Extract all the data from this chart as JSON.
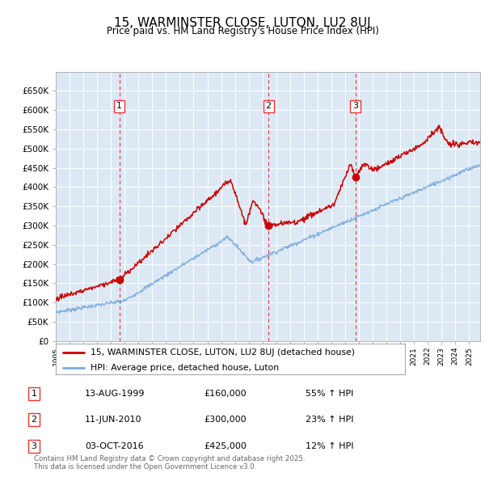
{
  "title": "15, WARMINSTER CLOSE, LUTON, LU2 8UJ",
  "subtitle": "Price paid vs. HM Land Registry's House Price Index (HPI)",
  "background_color": "#ffffff",
  "plot_bg_color": "#dce9f5",
  "ylim": [
    0,
    700000
  ],
  "yticks": [
    0,
    50000,
    100000,
    150000,
    200000,
    250000,
    300000,
    350000,
    400000,
    450000,
    500000,
    550000,
    600000,
    650000
  ],
  "ytick_labels": [
    "£0",
    "£50K",
    "£100K",
    "£150K",
    "£200K",
    "£250K",
    "£300K",
    "£350K",
    "£400K",
    "£450K",
    "£500K",
    "£550K",
    "£600K",
    "£650K"
  ],
  "sales": [
    {
      "date": 1999.62,
      "price": 160000,
      "label": "1"
    },
    {
      "date": 2010.44,
      "price": 300000,
      "label": "2"
    },
    {
      "date": 2016.75,
      "price": 425000,
      "label": "3"
    }
  ],
  "sale_vlines": [
    1999.62,
    2010.44,
    2016.75
  ],
  "legend_line1": "15, WARMINSTER CLOSE, LUTON, LU2 8UJ (detached house)",
  "legend_line2": "HPI: Average price, detached house, Luton",
  "table": [
    {
      "num": "1",
      "date": "13-AUG-1999",
      "price": "£160,000",
      "hpi": "55% ↑ HPI"
    },
    {
      "num": "2",
      "date": "11-JUN-2010",
      "price": "£300,000",
      "hpi": "23% ↑ HPI"
    },
    {
      "num": "3",
      "date": "03-OCT-2016",
      "price": "£425,000",
      "hpi": "12% ↑ HPI"
    }
  ],
  "footer": "Contains HM Land Registry data © Crown copyright and database right 2025.\nThis data is licensed under the Open Government Licence v3.0.",
  "red_line_color": "#cc0000",
  "blue_line_color": "#7aaadd",
  "vline_color": "#ee3333",
  "xstart": 1995.0,
  "xend": 2025.8
}
